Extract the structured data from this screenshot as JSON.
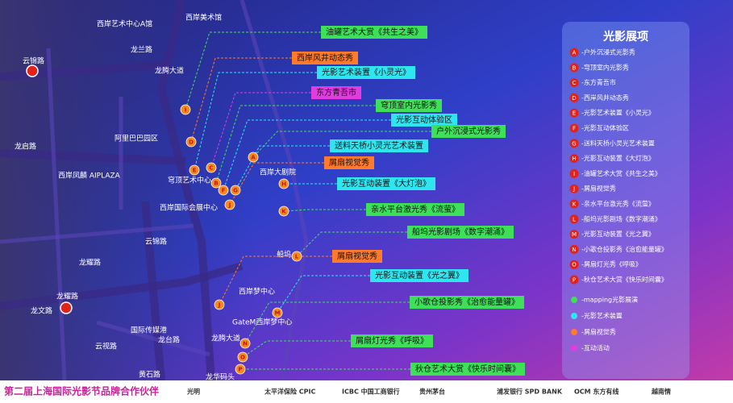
{
  "map": {
    "labels": [
      "西岸艺术中心A馆",
      "西岸美术馆",
      "云锦路",
      "龙兰路",
      "龙腾大道",
      "龙启路",
      "阿里巴巴园区",
      "西岸凤麟 AIPLAZA",
      "穹顶艺术中心",
      "西岸国际会展中心",
      "西岸大剧院",
      "船坞",
      "云锦路",
      "龙耀路",
      "龙耀路",
      "龙文路",
      "国际传媒港",
      "云视路",
      "龙台路",
      "龙腾大道",
      "西岸梦中心",
      "GateM西岸梦中心",
      "黄石路",
      "龙华码头"
    ],
    "callouts": [
      {
        "text": "油罐艺术大赏《共生之美》",
        "color": "#3ee05a"
      },
      {
        "text": "西岸风井动态秀",
        "color": "#ff7a2a"
      },
      {
        "text": "光影艺术装置《小灵光》",
        "color": "#2fe6f0"
      },
      {
        "text": "东方青吾市",
        "color": "#e23be0"
      },
      {
        "text": "穹顶室内光影秀",
        "color": "#3ee05a"
      },
      {
        "text": "光影互动体验区",
        "color": "#2fe6f0"
      },
      {
        "text": "户外沉浸式光影秀",
        "color": "#3ee05a"
      },
      {
        "text": "送料天桥小灵光艺术装置",
        "color": "#2fe6f0"
      },
      {
        "text": "屑扇视觉秀",
        "color": "#ff7a2a"
      },
      {
        "text": "光影互动装置《大灯泡》",
        "color": "#2fe6f0"
      },
      {
        "text": "亲水平台激光秀《流萤》",
        "color": "#3ee05a"
      },
      {
        "text": "船坞光影剧场《数字潮涌》",
        "color": "#3ee05a"
      },
      {
        "text": "屑扇视觉秀",
        "color": "#ff7a2a"
      },
      {
        "text": "光影互动装置《光之翼》",
        "color": "#2fe6f0"
      },
      {
        "text": "小歌仓投影秀《治愈能量罐》",
        "color": "#3ee05a"
      },
      {
        "text": "屑扇灯光秀《呼吸》",
        "color": "#3ee05a"
      },
      {
        "text": "秋仓艺术大赏《快乐时间囊》",
        "color": "#3ee05a"
      }
    ],
    "markers": [
      "I",
      "D",
      "E",
      "C",
      "B",
      "F",
      "A",
      "G",
      "J",
      "H",
      "K",
      "L",
      "J",
      "M",
      "N",
      "O",
      "P"
    ]
  },
  "legend": {
    "title": "光影展项",
    "items": [
      {
        "letter": "A",
        "text": "-户外沉浸式光影秀"
      },
      {
        "letter": "B",
        "text": "-穹顶室内光影秀"
      },
      {
        "letter": "C",
        "text": "-东方青吾市"
      },
      {
        "letter": "D",
        "text": "-西岸风井动态秀"
      },
      {
        "letter": "E",
        "text": "-光影艺术装置《小灵光》"
      },
      {
        "letter": "F",
        "text": "-光影互动体验区"
      },
      {
        "letter": "G",
        "text": "-送料天桥小灵光艺术装置"
      },
      {
        "letter": "H",
        "text": "-光影互动装置《大灯泡》"
      },
      {
        "letter": "I",
        "text": "-油罐艺术大赏《共生之美》"
      },
      {
        "letter": "J",
        "text": "-屑扇视觉秀"
      },
      {
        "letter": "K",
        "text": "-亲水平台激光秀《流萤》"
      },
      {
        "letter": "L",
        "text": "-船坞光影剧场《数字潮涌》"
      },
      {
        "letter": "M",
        "text": "-光影互动装置《光之翼》"
      },
      {
        "letter": "N",
        "text": "-小歌仓投影秀《治愈能量罐》"
      },
      {
        "letter": "O",
        "text": "-屑扇灯光秀《呼吸》"
      },
      {
        "letter": "P",
        "text": "-秋仓艺术大赏《快乐时间囊》"
      }
    ],
    "categories": [
      {
        "text": "-mapping光影展演",
        "color": "#3ee05a"
      },
      {
        "text": "-光影艺术装置",
        "color": "#2fe6f0"
      },
      {
        "text": "-屑扇视觉秀",
        "color": "#ff7a2a"
      },
      {
        "text": "-互动活动",
        "color": "#e23be0"
      }
    ]
  },
  "footer": {
    "title": "第二届上海国际光影节品牌合作伙伴",
    "sponsors": [
      "光明",
      "太平洋保险 CPIC",
      "ICBC 中国工商银行",
      "贵州茅台",
      "浦发银行 SPD BANK",
      "OCM 东方有线",
      "越南情"
    ]
  }
}
